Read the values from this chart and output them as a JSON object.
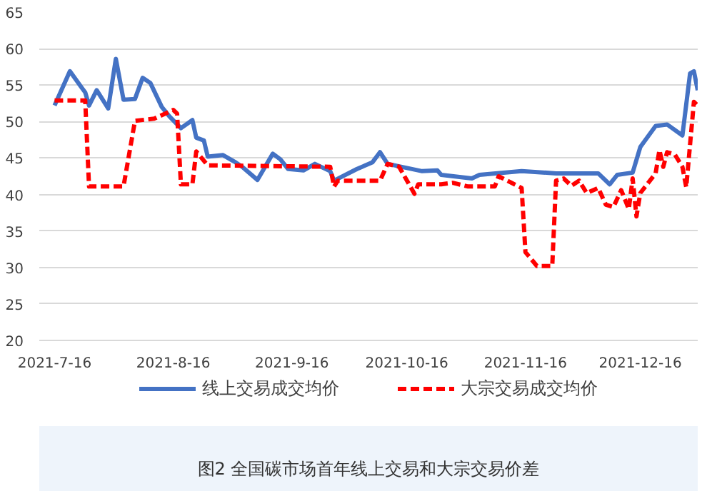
{
  "chart_data": {
    "type": "line",
    "annotations": [
      "图2 全国碳市场首年线上交易和大宗交易价差"
    ],
    "xlim": [
      "2021-07-12",
      "2021-12-31"
    ],
    "xticks": [
      {
        "value": "2021-07-16",
        "label": "2021-7-16"
      },
      {
        "value": "2021-08-16",
        "label": "2021-8-16"
      },
      {
        "value": "2021-09-16",
        "label": "2021-9-16"
      },
      {
        "value": "2021-10-16",
        "label": "2021-10-16"
      },
      {
        "value": "2021-11-16",
        "label": "2021-11-16"
      },
      {
        "value": "2021-12-16",
        "label": "2021-12-16"
      }
    ],
    "ylim": [
      20,
      65
    ],
    "yticks": [
      20,
      25,
      30,
      35,
      40,
      45,
      50,
      55,
      60,
      65
    ],
    "grid": "y",
    "legend": "bottom",
    "marker": "none",
    "series": [
      {
        "name": "线上交易成交均价",
        "color": "#4472c4",
        "line_style": "solid",
        "x": [
          "2021-07-16",
          "2021-07-20",
          "2021-07-23",
          "2021-07-24",
          "2021-07-25",
          "2021-07-27",
          "2021-07-30",
          "2021-08-01",
          "2021-08-03",
          "2021-08-06",
          "2021-08-08",
          "2021-08-10",
          "2021-08-13",
          "2021-08-15",
          "2021-08-18",
          "2021-08-21",
          "2021-08-22",
          "2021-08-24",
          "2021-08-25",
          "2021-08-29",
          "2021-09-01",
          "2021-09-03",
          "2021-09-07",
          "2021-09-11",
          "2021-09-13",
          "2021-09-15",
          "2021-09-19",
          "2021-09-22",
          "2021-09-26",
          "2021-09-27",
          "2021-10-03",
          "2021-10-07",
          "2021-10-09",
          "2021-10-11",
          "2021-10-20",
          "2021-10-24",
          "2021-10-25",
          "2021-11-02",
          "2021-11-04",
          "2021-11-15",
          "2021-11-24",
          "2021-12-05",
          "2021-12-08",
          "2021-12-10",
          "2021-12-14",
          "2021-12-16",
          "2021-12-20",
          "2021-12-23",
          "2021-12-27",
          "2021-12-29",
          "2021-12-30",
          "2021-12-31"
        ],
        "values": [
          52.2,
          56.9,
          54.7,
          54.0,
          52.2,
          54.3,
          51.8,
          58.6,
          53.0,
          53.1,
          56.0,
          55.3,
          52.0,
          50.7,
          49.1,
          50.2,
          47.8,
          47.4,
          45.2,
          45.4,
          44.5,
          43.8,
          42.0,
          45.6,
          44.8,
          43.5,
          43.3,
          44.2,
          43.2,
          41.9,
          43.5,
          44.4,
          45.8,
          44.2,
          43.2,
          43.3,
          42.7,
          42.2,
          42.7,
          43.2,
          42.9,
          42.9,
          41.4,
          42.7,
          43.0,
          46.5,
          49.4,
          49.6,
          48.1,
          56.6,
          56.9,
          54.3
        ]
      },
      {
        "name": "大宗交易成交均价",
        "color": "#ff0000",
        "line_style": "dashed",
        "x": [
          "2021-07-16",
          "2021-07-24",
          "2021-07-25",
          "2021-08-03",
          "2021-08-06",
          "2021-08-11",
          "2021-08-16",
          "2021-08-17",
          "2021-08-18",
          "2021-08-21",
          "2021-08-22",
          "2021-08-25",
          "2021-09-26",
          "2021-09-27",
          "2021-09-28",
          "2021-10-09",
          "2021-10-11",
          "2021-10-14",
          "2021-10-18",
          "2021-10-19",
          "2021-10-25",
          "2021-10-28",
          "2021-11-01",
          "2021-11-08",
          "2021-11-09",
          "2021-11-15",
          "2021-11-16",
          "2021-11-19",
          "2021-11-23",
          "2021-11-24",
          "2021-11-26",
          "2021-11-28",
          "2021-11-30",
          "2021-12-02",
          "2021-12-05",
          "2021-12-07",
          "2021-12-09",
          "2021-12-11",
          "2021-12-13",
          "2021-12-14",
          "2021-12-15",
          "2021-12-16",
          "2021-12-20",
          "2021-12-21",
          "2021-12-22",
          "2021-12-23",
          "2021-12-25",
          "2021-12-27",
          "2021-12-28",
          "2021-12-30",
          "2021-12-31"
        ],
        "values": [
          52.9,
          52.9,
          41.1,
          41.1,
          50.1,
          50.4,
          51.6,
          51.1,
          41.4,
          41.4,
          45.9,
          44.0,
          43.8,
          41.1,
          41.9,
          41.9,
          44.2,
          43.8,
          40.1,
          41.4,
          41.4,
          41.6,
          41.1,
          41.1,
          42.5,
          40.9,
          32.1,
          30.2,
          30.2,
          41.9,
          42.2,
          41.2,
          41.9,
          40.2,
          40.9,
          38.6,
          38.3,
          40.6,
          38.0,
          42.2,
          37.0,
          40.2,
          42.9,
          46.1,
          43.8,
          45.8,
          45.5,
          43.8,
          41.0,
          52.7,
          52.2
        ]
      }
    ]
  }
}
